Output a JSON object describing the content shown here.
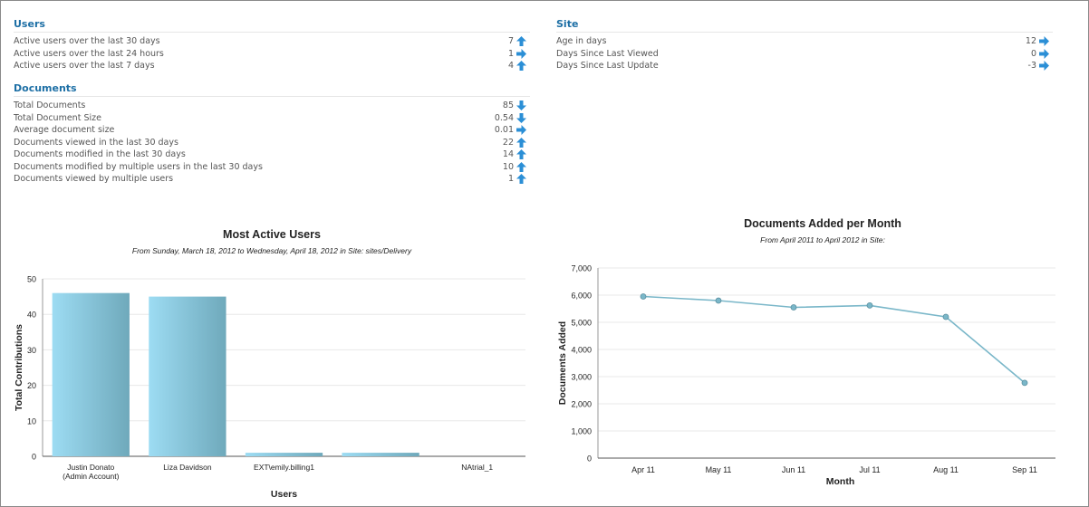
{
  "users": {
    "title": "Users",
    "rows": [
      {
        "label": "Active users over the last 30 days",
        "value": "7",
        "trend": "up-arrow-icon"
      },
      {
        "label": "Active users over the last 24 hours",
        "value": "1",
        "trend": "right-arrow-icon"
      },
      {
        "label": "Active users over the last 7 days",
        "value": "4",
        "trend": "up-arrow-icon"
      }
    ]
  },
  "documents": {
    "title": "Documents",
    "rows": [
      {
        "label": "Total Documents",
        "value": "85",
        "trend": "down-arrow-icon"
      },
      {
        "label": "Total Document Size",
        "value": "0.54",
        "trend": "down-arrow-icon"
      },
      {
        "label": "Average document size",
        "value": "0.01",
        "trend": "right-arrow-icon"
      },
      {
        "label": "Documents viewed in the last 30 days",
        "value": "22",
        "trend": "up-arrow-icon"
      },
      {
        "label": "Documents modified in the last 30 days",
        "value": "14",
        "trend": "up-arrow-icon"
      },
      {
        "label": "Documents modified by multiple users in the last 30 days",
        "value": "10",
        "trend": "up-arrow-icon"
      },
      {
        "label": "Documents viewed by multiple users",
        "value": "1",
        "trend": "up-arrow-icon"
      }
    ]
  },
  "site": {
    "title": "Site",
    "rows": [
      {
        "label": "Age in days",
        "value": "12",
        "trend": "right-arrow-icon"
      },
      {
        "label": "Days Since Last Viewed",
        "value": "0",
        "trend": "right-arrow-icon"
      },
      {
        "label": "Days Since Last Update",
        "value": "-3",
        "trend": "right-arrow-icon"
      }
    ]
  },
  "colors": {
    "accent": "#1d6fa5",
    "arrow": "#2b8fd6",
    "bar_light": "#9ddcf3",
    "bar_dark": "#6fa9bb",
    "line": "#7ab7c9"
  },
  "chart_data": [
    {
      "type": "bar",
      "title": "Most Active Users",
      "subtitle": "From Sunday, March 18, 2012 to Wednesday, April 18, 2012 in Site: sites/Delivery",
      "xlabel": "Users",
      "ylabel": "Total Contributions",
      "categories": [
        "Justin Donato\n(Admin Account)",
        "Liza Davidson",
        "EXT\\emily.billing1",
        "",
        "NAtrial_1"
      ],
      "values": [
        46,
        45,
        1,
        1,
        0
      ],
      "ylim": [
        0,
        50
      ],
      "yticks": [
        0,
        10,
        20,
        30,
        40,
        50
      ],
      "grid": true
    },
    {
      "type": "line",
      "title": "Documents Added per Month",
      "subtitle": "From April 2011 to April 2012 in Site:",
      "xlabel": "Month",
      "ylabel": "Documents Added",
      "categories": [
        "Apr 11",
        "May 11",
        "Jun 11",
        "Jul 11",
        "Aug 11",
        "Sep 11"
      ],
      "values": [
        5950,
        5800,
        5550,
        5620,
        5200,
        2770
      ],
      "ylim": [
        0,
        7000
      ],
      "yticks": [
        0,
        1000,
        2000,
        3000,
        4000,
        5000,
        6000,
        7000
      ],
      "ytick_labels": [
        "0",
        "1,000",
        "2,000",
        "3,000",
        "4,000",
        "5,000",
        "6,000",
        "7,000"
      ],
      "grid": true
    }
  ]
}
